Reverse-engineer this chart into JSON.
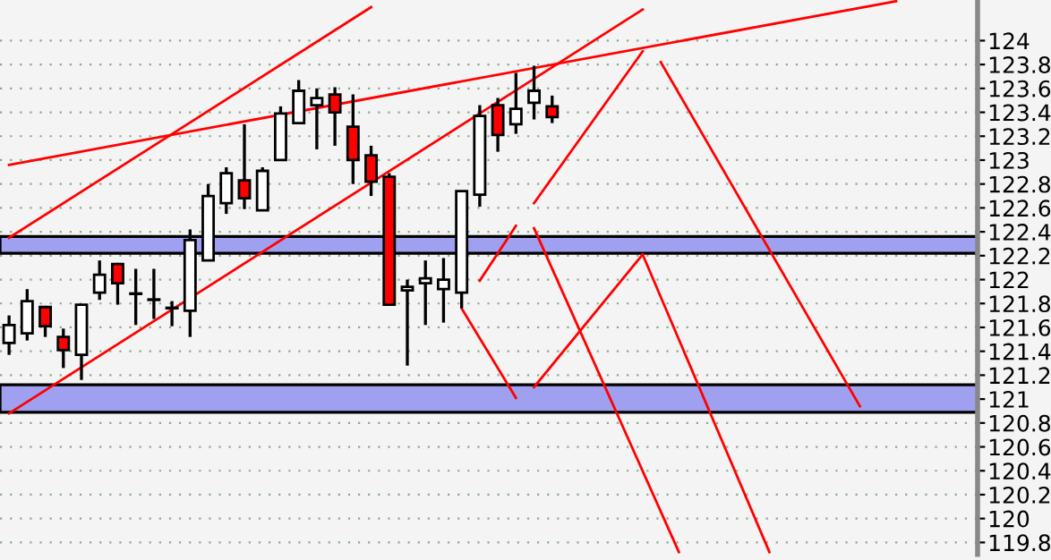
{
  "chart_data": {
    "type": "candlestick",
    "categories": [
      null,
      null,
      null,
      null,
      null,
      null,
      null,
      null,
      null,
      null,
      null,
      null,
      null,
      null,
      null,
      null,
      null,
      null,
      null,
      null,
      null,
      null,
      null,
      null,
      null,
      null,
      null,
      null,
      null,
      null,
      null,
      null,
      null,
      null,
      null,
      null,
      null,
      null,
      null,
      null,
      null,
      null,
      null,
      null,
      null,
      null,
      null,
      null,
      null,
      null,
      null,
      null,
      null,
      null
    ],
    "ohlc": [
      [
        121.47,
        121.7,
        121.37,
        121.62
      ],
      [
        121.55,
        121.92,
        121.49,
        121.82
      ],
      [
        121.77,
        121.78,
        121.52,
        121.61
      ],
      [
        121.52,
        121.59,
        121.26,
        121.41
      ],
      [
        121.37,
        121.79,
        121.16,
        121.79
      ],
      [
        121.89,
        122.16,
        121.83,
        122.04
      ],
      [
        122.13,
        122.14,
        121.79,
        121.97
      ],
      [
        121.88,
        122.09,
        121.62,
        121.88
      ],
      [
        121.83,
        122.09,
        121.67,
        121.83
      ],
      [
        121.76,
        121.82,
        121.61,
        121.76
      ],
      [
        121.74,
        122.42,
        121.52,
        122.33
      ],
      [
        122.16,
        122.8,
        122.16,
        122.7
      ],
      [
        122.64,
        122.94,
        122.55,
        122.89
      ],
      [
        122.83,
        123.3,
        122.59,
        122.68
      ],
      [
        122.58,
        122.94,
        122.58,
        122.91
      ],
      [
        123.0,
        123.45,
        123.0,
        123.39
      ],
      [
        123.31,
        123.67,
        123.31,
        123.58
      ],
      [
        123.46,
        123.6,
        123.09,
        123.52
      ],
      [
        123.55,
        123.61,
        123.12,
        123.4
      ],
      [
        123.28,
        123.55,
        122.8,
        123.0
      ],
      [
        123.04,
        123.12,
        122.7,
        122.82
      ],
      [
        122.86,
        122.89,
        121.79,
        121.79
      ],
      [
        121.91,
        122.0,
        121.28,
        121.94
      ],
      [
        121.97,
        122.16,
        121.62,
        122.01
      ],
      [
        121.92,
        122.18,
        121.64,
        122.0
      ],
      [
        121.89,
        122.74,
        121.76,
        122.74
      ],
      [
        122.71,
        123.46,
        122.61,
        123.37
      ],
      [
        123.46,
        123.52,
        123.07,
        123.21
      ],
      [
        123.3,
        123.73,
        123.22,
        123.43
      ],
      [
        123.48,
        123.79,
        123.34,
        123.58
      ],
      [
        123.45,
        123.54,
        123.31,
        123.36
      ],
      null,
      null,
      null,
      null,
      null,
      null,
      null,
      null,
      null,
      null,
      null,
      null,
      null,
      null,
      null,
      null,
      null,
      null,
      null,
      null,
      null,
      null,
      null
    ],
    "colors": [
      "#ffffff",
      "#ffffff",
      "#ff0000",
      "#ff0000",
      "#ffffff",
      "#ffffff",
      "#ff0000",
      "#ffffff",
      "#ffffff",
      "#ffffff",
      "#ffffff",
      "#ffffff",
      "#ffffff",
      "#ff0000",
      "#ffffff",
      "#ffffff",
      "#ffffff",
      "#ffffff",
      "#ff0000",
      "#ff0000",
      "#ff0000",
      "#ff0000",
      "#ffffff",
      "#ffffff",
      "#ffffff",
      "#ffffff",
      "#ffffff",
      "#ff0000",
      "#ffffff",
      "#ffffff",
      "#ff0000",
      null,
      null,
      null,
      null,
      null,
      null,
      null,
      null,
      null,
      null,
      null,
      null,
      null,
      null,
      null,
      null,
      null,
      null,
      null,
      null,
      null,
      null,
      null
    ],
    "series": [
      {
        "type": "line",
        "color": "#ff0000",
        "values": [
          122.96,
          null,
          null,
          null,
          null,
          null,
          null,
          null,
          null,
          null,
          null,
          null,
          null,
          null,
          null,
          null,
          null,
          null,
          null,
          null,
          null,
          null,
          null,
          null,
          null,
          null,
          null,
          null,
          null,
          null,
          null,
          null,
          null,
          null,
          null,
          null,
          null,
          null,
          null,
          null,
          null,
          null,
          null,
          null,
          null,
          null,
          null,
          null,
          null,
          124.33,
          null,
          null,
          null,
          null
        ]
      },
      {
        "type": "line",
        "color": "#ff0000",
        "values": [
          122.35,
          null,
          null,
          null,
          null,
          null,
          null,
          null,
          null,
          null,
          null,
          null,
          null,
          null,
          null,
          null,
          null,
          null,
          null,
          null,
          124.28,
          null,
          null,
          null,
          null,
          null,
          null,
          null,
          null,
          null,
          null,
          null,
          null,
          null,
          null,
          null,
          null,
          null,
          null,
          null,
          null,
          null,
          null,
          null,
          null,
          null,
          null,
          null,
          null,
          null,
          null,
          null,
          null,
          null
        ]
      },
      {
        "type": "line",
        "color": "#ff0000",
        "values": [
          120.88,
          null,
          null,
          null,
          null,
          null,
          null,
          null,
          null,
          null,
          null,
          null,
          null,
          null,
          null,
          null,
          null,
          null,
          null,
          null,
          null,
          null,
          null,
          null,
          null,
          null,
          null,
          null,
          null,
          null,
          null,
          null,
          null,
          null,
          null,
          124.26,
          null,
          null,
          null,
          null,
          null,
          null,
          null,
          null,
          null,
          null,
          null,
          null,
          null,
          null,
          null,
          null,
          null,
          null
        ]
      },
      {
        "type": "line",
        "color": "#ff0000",
        "values": [
          null,
          null,
          null,
          null,
          null,
          null,
          null,
          null,
          null,
          null,
          null,
          null,
          null,
          null,
          null,
          null,
          null,
          null,
          null,
          null,
          null,
          null,
          null,
          null,
          null,
          121.76,
          null,
          null,
          121.01,
          null,
          null,
          null,
          null,
          null,
          null,
          null,
          null,
          null,
          null,
          null,
          null,
          null,
          null,
          null,
          null,
          null,
          null,
          null,
          null,
          null,
          null,
          null,
          null,
          null
        ]
      },
      {
        "type": "line",
        "color": "#ff0000",
        "values": [
          null,
          null,
          null,
          null,
          null,
          null,
          null,
          null,
          null,
          null,
          null,
          null,
          null,
          null,
          null,
          null,
          null,
          null,
          null,
          null,
          null,
          null,
          null,
          null,
          null,
          null,
          null,
          null,
          null,
          121.1,
          null,
          null,
          null,
          null,
          null,
          122.21,
          null,
          null,
          null,
          null,
          null,
          null,
          null,
          null,
          null,
          null,
          null,
          null,
          null,
          null,
          null,
          null,
          null,
          null
        ]
      },
      {
        "type": "line",
        "color": "#ff0000",
        "values": [
          null,
          null,
          null,
          null,
          null,
          null,
          null,
          null,
          null,
          null,
          null,
          null,
          null,
          null,
          null,
          null,
          null,
          null,
          null,
          null,
          null,
          null,
          null,
          null,
          null,
          null,
          null,
          null,
          null,
          null,
          null,
          null,
          null,
          null,
          null,
          122.21,
          null,
          null,
          null,
          null,
          null,
          null,
          119.72,
          null,
          null,
          null,
          null,
          null,
          null,
          null,
          null,
          null,
          null,
          null
        ]
      },
      {
        "type": "line",
        "color": "#ff0000",
        "values": [
          null,
          null,
          null,
          null,
          null,
          null,
          null,
          null,
          null,
          null,
          null,
          null,
          null,
          null,
          null,
          null,
          null,
          null,
          null,
          null,
          null,
          null,
          null,
          null,
          null,
          null,
          null,
          null,
          null,
          122.43,
          null,
          null,
          null,
          null,
          null,
          null,
          null,
          119.72,
          null,
          null,
          null,
          null,
          null,
          null,
          null,
          null,
          null,
          null,
          null,
          null,
          null,
          null,
          null,
          null
        ]
      },
      {
        "type": "line",
        "color": "#ff0000",
        "values": [
          null,
          null,
          null,
          null,
          null,
          null,
          null,
          null,
          null,
          null,
          null,
          null,
          null,
          null,
          null,
          null,
          null,
          null,
          null,
          null,
          null,
          null,
          null,
          null,
          null,
          null,
          121.99,
          null,
          122.45,
          null,
          null,
          null,
          null,
          null,
          null,
          null,
          null,
          null,
          null,
          null,
          null,
          null,
          null,
          null,
          null,
          null,
          null,
          null,
          null,
          null,
          null,
          null,
          null,
          null
        ]
      },
      {
        "type": "line",
        "color": "#ff0000",
        "values": [
          null,
          null,
          null,
          null,
          null,
          null,
          null,
          null,
          null,
          null,
          null,
          null,
          null,
          null,
          null,
          null,
          null,
          null,
          null,
          null,
          null,
          null,
          null,
          null,
          null,
          null,
          null,
          null,
          null,
          122.64,
          null,
          null,
          null,
          null,
          null,
          123.91,
          null,
          null,
          null,
          null,
          null,
          null,
          null,
          null,
          null,
          null,
          null,
          null,
          null,
          null,
          null,
          null,
          null,
          null
        ]
      },
      {
        "type": "line",
        "color": "#ff0000",
        "values": [
          null,
          null,
          null,
          null,
          null,
          null,
          null,
          null,
          null,
          null,
          null,
          null,
          null,
          null,
          null,
          null,
          null,
          null,
          null,
          null,
          null,
          null,
          null,
          null,
          null,
          null,
          null,
          null,
          null,
          null,
          null,
          null,
          null,
          null,
          null,
          null,
          123.82,
          null,
          null,
          null,
          null,
          null,
          null,
          null,
          null,
          null,
          null,
          120.94,
          null,
          null,
          null,
          null,
          null,
          null
        ]
      }
    ],
    "bands": [
      {
        "axis": "y",
        "from": 122.22,
        "to": 122.36,
        "color": "#a0a0f0"
      },
      {
        "axis": "y",
        "from": 120.89,
        "to": 121.12,
        "color": "#a0a0f0"
      }
    ],
    "ylim": [
      119.7,
      124.34
    ],
    "yticks": [
      119.8,
      120,
      120.2,
      120.4,
      120.6,
      120.8,
      121,
      121.2,
      121.4,
      121.6,
      121.8,
      122,
      122.2,
      122.4,
      122.6,
      122.8,
      123,
      123.2,
      123.4,
      123.6,
      123.8,
      124
    ],
    "tick_labels": "y",
    "grid": "y"
  }
}
